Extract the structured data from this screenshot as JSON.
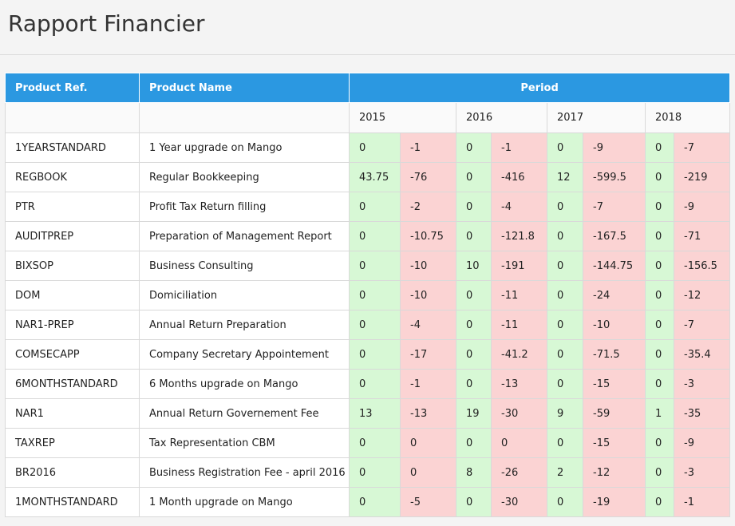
{
  "page": {
    "title": "Rapport Financier"
  },
  "table": {
    "headers": {
      "ref": "Product Ref.",
      "name": "Product Name",
      "period": "Period"
    },
    "years": [
      "2015",
      "2016",
      "2017",
      "2018"
    ],
    "rows": [
      {
        "ref": "1YEARSTANDARD",
        "name": "1 Year upgrade on Mango",
        "values": [
          "0",
          "-1",
          "0",
          "-1",
          "0",
          "-9",
          "0",
          "-7"
        ]
      },
      {
        "ref": "REGBOOK",
        "name": "Regular Bookkeeping",
        "values": [
          "43.75",
          "-76",
          "0",
          "-416",
          "12",
          "-599.5",
          "0",
          "-219"
        ]
      },
      {
        "ref": "PTR",
        "name": "Profit Tax Return filling",
        "values": [
          "0",
          "-2",
          "0",
          "-4",
          "0",
          "-7",
          "0",
          "-9"
        ]
      },
      {
        "ref": "AUDITPREP",
        "name": "Preparation of Management Report",
        "values": [
          "0",
          "-10.75",
          "0",
          "-121.8",
          "0",
          "-167.5",
          "0",
          "-71"
        ]
      },
      {
        "ref": "BIXSOP",
        "name": "Business Consulting",
        "values": [
          "0",
          "-10",
          "10",
          "-191",
          "0",
          "-144.75",
          "0",
          "-156.5"
        ]
      },
      {
        "ref": "DOM",
        "name": "Domiciliation",
        "values": [
          "0",
          "-10",
          "0",
          "-11",
          "0",
          "-24",
          "0",
          "-12"
        ]
      },
      {
        "ref": "NAR1-PREP",
        "name": "Annual Return Preparation",
        "values": [
          "0",
          "-4",
          "0",
          "-11",
          "0",
          "-10",
          "0",
          "-7"
        ]
      },
      {
        "ref": "COMSECAPP",
        "name": "Company Secretary Appointement",
        "values": [
          "0",
          "-17",
          "0",
          "-41.2",
          "0",
          "-71.5",
          "0",
          "-35.4"
        ]
      },
      {
        "ref": "6MONTHSTANDARD",
        "name": "6 Months upgrade on Mango",
        "values": [
          "0",
          "-1",
          "0",
          "-13",
          "0",
          "-15",
          "0",
          "-3"
        ]
      },
      {
        "ref": "NAR1",
        "name": "Annual Return Governement Fee",
        "values": [
          "13",
          "-13",
          "19",
          "-30",
          "9",
          "-59",
          "1",
          "-35"
        ]
      },
      {
        "ref": "TAXREP",
        "name": "Tax Representation CBM",
        "values": [
          "0",
          "0",
          "0",
          "0",
          "0",
          "-15",
          "0",
          "-9"
        ]
      },
      {
        "ref": "BR2016",
        "name": "Business Registration Fee - april 2016",
        "values": [
          "0",
          "0",
          "8",
          "-26",
          "2",
          "-12",
          "0",
          "-3"
        ]
      },
      {
        "ref": "1MONTHSTANDARD",
        "name": "1 Month upgrade on Mango",
        "values": [
          "0",
          "-5",
          "0",
          "-30",
          "0",
          "-19",
          "0",
          "-1"
        ]
      }
    ]
  },
  "colors": {
    "header_blue": "#2b98e1",
    "positive_cell": "#d7f8d5",
    "negative_cell": "#fbd3d3"
  }
}
